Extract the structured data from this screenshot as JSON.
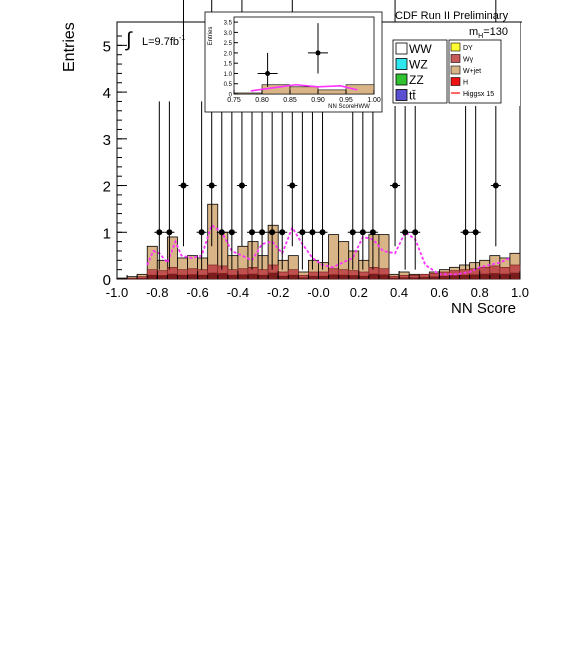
{
  "chart_data": {
    "type": "bar",
    "title": "CDF Run II Preliminary",
    "xlabel": "NN Score",
    "ylabel": "Entries",
    "xlim": [
      -1.0,
      1.0
    ],
    "ylim": [
      0,
      5.5
    ],
    "x_ticks": [
      "-1.0",
      "-0.8",
      "-0.6",
      "-0.4",
      "-0.2",
      "-0.0",
      "0.2",
      "0.4",
      "0.6",
      "0.8",
      "1.0"
    ],
    "y_ticks": [
      "0",
      "1",
      "2",
      "3",
      "4",
      "5"
    ],
    "lumi_label": "L=9.7fb",
    "lumi_sup": "-1",
    "mass_label": "m",
    "mass_sub": "H",
    "mass_value": "=130",
    "bin_width": 0.05,
    "bin_edges_start": -1.0,
    "background_total": [
      0.02,
      0.05,
      0.1,
      0.7,
      0.4,
      0.9,
      0.45,
      0.5,
      0.45,
      1.6,
      1.0,
      0.5,
      0.7,
      0.8,
      0.5,
      1.15,
      0.4,
      0.5,
      0.15,
      0.4,
      0.35,
      0.95,
      0.8,
      0.6,
      0.4,
      0.95,
      0.95,
      0.1,
      0.15,
      0.1,
      0.1,
      0.15,
      0.2,
      0.25,
      0.3,
      0.35,
      0.4,
      0.5,
      0.45,
      0.55
    ],
    "background_red": [
      0.01,
      0.02,
      0.05,
      0.2,
      0.18,
      0.25,
      0.2,
      0.22,
      0.2,
      0.3,
      0.28,
      0.2,
      0.22,
      0.25,
      0.2,
      0.3,
      0.15,
      0.2,
      0.08,
      0.15,
      0.15,
      0.22,
      0.2,
      0.18,
      0.15,
      0.25,
      0.22,
      0.06,
      0.08,
      0.08,
      0.1,
      0.12,
      0.15,
      0.18,
      0.2,
      0.22,
      0.25,
      0.28,
      0.25,
      0.3
    ],
    "data_points": [
      {
        "x": -0.79,
        "y": 1
      },
      {
        "x": -0.74,
        "y": 1
      },
      {
        "x": -0.67,
        "y": 2
      },
      {
        "x": -0.58,
        "y": 1
      },
      {
        "x": -0.53,
        "y": 2
      },
      {
        "x": -0.48,
        "y": 1
      },
      {
        "x": -0.43,
        "y": 1
      },
      {
        "x": -0.38,
        "y": 2
      },
      {
        "x": -0.33,
        "y": 1
      },
      {
        "x": -0.28,
        "y": 1
      },
      {
        "x": -0.23,
        "y": 1
      },
      {
        "x": -0.18,
        "y": 1
      },
      {
        "x": -0.13,
        "y": 2
      },
      {
        "x": -0.08,
        "y": 1
      },
      {
        "x": -0.03,
        "y": 1
      },
      {
        "x": 0.02,
        "y": 1
      },
      {
        "x": 0.17,
        "y": 1
      },
      {
        "x": 0.22,
        "y": 1
      },
      {
        "x": 0.27,
        "y": 1
      },
      {
        "x": 0.38,
        "y": 2
      },
      {
        "x": 0.43,
        "y": 1
      },
      {
        "x": 0.48,
        "y": 1
      },
      {
        "x": 0.73,
        "y": 1
      },
      {
        "x": 0.78,
        "y": 1
      },
      {
        "x": 0.88,
        "y": 2
      }
    ],
    "signal_curve": [
      [
        -0.85,
        0.3
      ],
      [
        -0.82,
        0.6
      ],
      [
        -0.79,
        0.55
      ],
      [
        -0.75,
        0.35
      ],
      [
        -0.71,
        0.8
      ],
      [
        -0.68,
        0.5
      ],
      [
        -0.63,
        0.45
      ],
      [
        -0.58,
        0.5
      ],
      [
        -0.53,
        1.15
      ],
      [
        -0.48,
        1.0
      ],
      [
        -0.43,
        0.6
      ],
      [
        -0.38,
        0.5
      ],
      [
        -0.33,
        0.4
      ],
      [
        -0.28,
        0.75
      ],
      [
        -0.23,
        0.8
      ],
      [
        -0.18,
        0.55
      ],
      [
        -0.13,
        1.1
      ],
      [
        -0.08,
        0.75
      ],
      [
        -0.03,
        0.45
      ],
      [
        0.02,
        0.3
      ],
      [
        0.07,
        0.25
      ],
      [
        0.12,
        0.35
      ],
      [
        0.17,
        0.45
      ],
      [
        0.22,
        0.9
      ],
      [
        0.27,
        0.85
      ],
      [
        0.32,
        0.6
      ],
      [
        0.38,
        0.55
      ],
      [
        0.43,
        1.0
      ],
      [
        0.48,
        0.85
      ],
      [
        0.53,
        0.3
      ],
      [
        0.6,
        0.1
      ],
      [
        0.68,
        0.1
      ],
      [
        0.75,
        0.15
      ],
      [
        0.8,
        0.25
      ],
      [
        0.85,
        0.3
      ],
      [
        0.9,
        0.35
      ],
      [
        0.95,
        0.45
      ]
    ],
    "legend_left": [
      {
        "label": "WW",
        "color": "#ffffff"
      },
      {
        "label": "WZ",
        "color": "#2ee6ee"
      },
      {
        "label": "ZZ",
        "color": "#30c030"
      },
      {
        "label": "tt̄",
        "color": "#5a4fd0"
      }
    ],
    "legend_right": [
      {
        "label": "DY",
        "color": "#ffff33"
      },
      {
        "label": "Wγ",
        "color": "#c85a5a"
      },
      {
        "label": "W+jet",
        "color": "#d9b486"
      },
      {
        "label": "H",
        "color": "#ee1111"
      },
      {
        "label": "Higgsx 15",
        "color": "#ff3333"
      }
    ],
    "inset": {
      "xlabel": "NN ScoreHWW",
      "ylabel": "Entries",
      "xlim": [
        0.75,
        1.0
      ],
      "ylim": [
        0,
        3.75
      ],
      "x_ticks": [
        "0.75",
        "0.80",
        "0.85",
        "0.90",
        "0.95",
        "1.00"
      ],
      "y_ticks": [
        "0",
        "0.5",
        "1.0",
        "1.5",
        "2.0",
        "2.5",
        "3.0",
        "3.5"
      ],
      "bin_width": 0.05,
      "background_total": [
        0.05,
        0.45,
        0.35,
        0.2,
        0.45
      ],
      "data_points": [
        {
          "x": 0.81,
          "y": 1
        },
        {
          "x": 0.9,
          "y": 2
        }
      ],
      "signal_curve": [
        [
          0.78,
          0.15
        ],
        [
          0.82,
          0.3
        ],
        [
          0.86,
          0.45
        ],
        [
          0.9,
          0.35
        ],
        [
          0.94,
          0.4
        ],
        [
          0.97,
          0.2
        ]
      ]
    }
  }
}
